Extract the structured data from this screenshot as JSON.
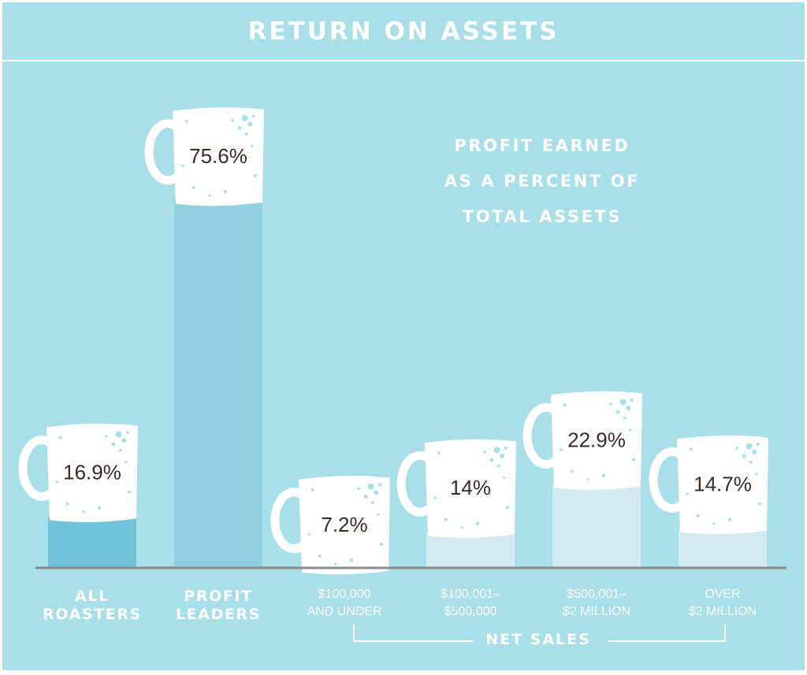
{
  "chart_data": {
    "type": "bar",
    "title": "RETURN ON ASSETS",
    "subtitle_lines": [
      "PROFIT EARNED",
      "AS A PERCENT OF",
      "TOTAL ASSETS"
    ],
    "categories": [
      {
        "label_lines": [
          "ALL",
          "ROASTERS"
        ],
        "bold": true
      },
      {
        "label_lines": [
          "PROFIT",
          "LEADERS"
        ],
        "bold": true
      },
      {
        "label_lines": [
          "$100,000",
          "AND UNDER"
        ],
        "bold": false
      },
      {
        "label_lines": [
          "$100,001–",
          "$500,000"
        ],
        "bold": false
      },
      {
        "label_lines": [
          "$500,001–",
          "$2 MILLION"
        ],
        "bold": false
      },
      {
        "label_lines": [
          "OVER",
          "$2 MILLION"
        ],
        "bold": false
      }
    ],
    "values": [
      16.9,
      75.6,
      7.2,
      14,
      22.9,
      14.7
    ],
    "data_labels": [
      "16.9%",
      "75.6%",
      "7.2%",
      "14%",
      "22.9%",
      "14.7%"
    ],
    "group_label": "NET SALES",
    "ylim": [
      0,
      100
    ],
    "grid": false,
    "colors": {
      "background": "#a9dfe8",
      "bars": [
        "#6fc2d8",
        "#92cfe0",
        "#d3eaf0",
        "#d3eaf0",
        "#d3eaf0",
        "#d3eaf0"
      ],
      "mug": "#ffffff",
      "speckle": "#a9dfe8",
      "value_text": "#3a2a24",
      "baseline": "#8a8a8a"
    },
    "icon": "coffee-mug-icon"
  }
}
